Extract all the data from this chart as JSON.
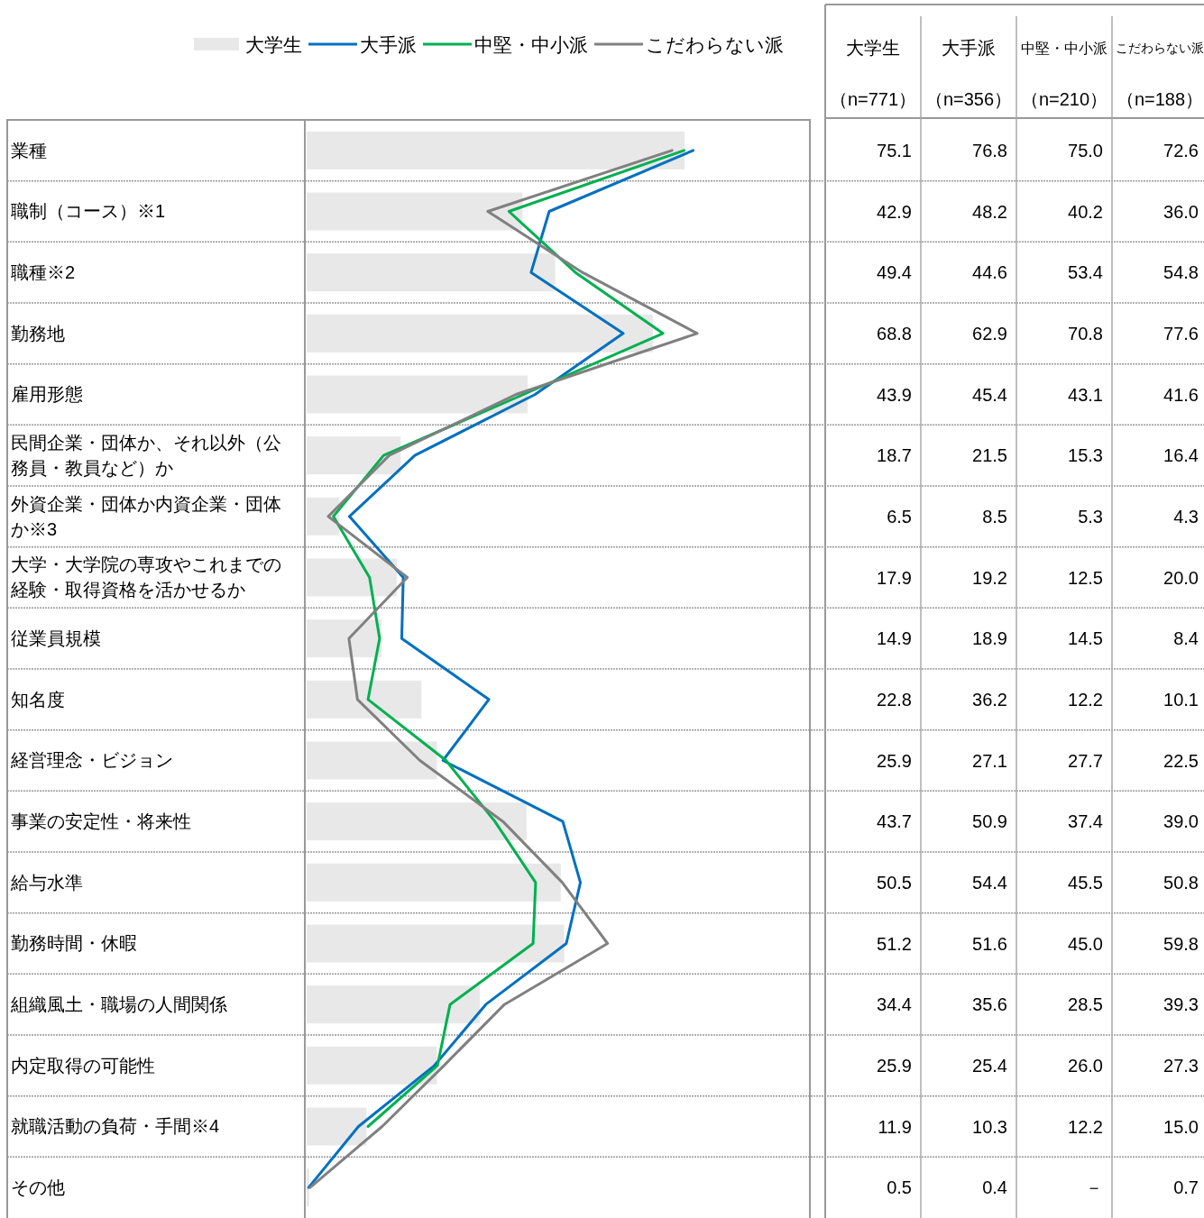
{
  "chart_data": {
    "type": "bar",
    "orientation": "horizontal",
    "xlim": [
      0,
      100
    ],
    "tick_labels": "y",
    "grid": "y",
    "legend": "top left",
    "categories": [
      "業種",
      "職制（コース）※1",
      "職種※2",
      "勤務地",
      "雇用形態",
      "民間企業・団体か、それ以外（公務員・教員など）か",
      "外資企業・団体か内資企業・団体か※3",
      "大学・大学院の専攻やこれまでの経験・取得資格を活かせるか",
      "従業員規模",
      "知名度",
      "経営理念・ビジョン",
      "事業の安定性・将来性",
      "給与水準",
      "勤務時間・休暇",
      "組織風土・職場の人間関係",
      "内定取得の可能性",
      "就職活動の負荷・手間※4",
      "その他"
    ],
    "series": [
      {
        "name": "大学生",
        "color": "#e8e8e8",
        "values": [
          75.1,
          42.9,
          49.4,
          68.8,
          43.9,
          18.7,
          6.5,
          17.9,
          14.9,
          22.8,
          25.9,
          43.7,
          50.5,
          51.2,
          34.4,
          25.9,
          11.9,
          0.5
        ],
        "value_labels": [
          "75.1",
          "42.9",
          "49.4",
          "68.8",
          "43.9",
          "18.7",
          "6.5",
          "17.9",
          "14.9",
          "22.8",
          "25.9",
          "43.7",
          "50.5",
          "51.2",
          "34.4",
          "25.9",
          "11.9",
          "0.5"
        ]
      },
      {
        "name": "大手派",
        "type": "line",
        "color": "#0070c0",
        "values": [
          76.8,
          48.2,
          44.6,
          62.9,
          45.4,
          21.5,
          8.5,
          19.2,
          18.9,
          36.2,
          27.1,
          50.9,
          54.4,
          51.6,
          35.6,
          25.4,
          10.3,
          0.4
        ],
        "value_labels": [
          "76.8",
          "48.2",
          "44.6",
          "62.9",
          "45.4",
          "21.5",
          "8.5",
          "19.2",
          "18.9",
          "36.2",
          "27.1",
          "50.9",
          "54.4",
          "51.6",
          "35.6",
          "25.4",
          "10.3",
          "0.4"
        ]
      },
      {
        "name": "中堅・中小派",
        "type": "line",
        "color": "#00b050",
        "values": [
          75.0,
          40.2,
          53.4,
          70.8,
          43.1,
          15.3,
          5.3,
          12.5,
          14.5,
          12.2,
          27.7,
          37.4,
          45.5,
          45.0,
          28.5,
          26.0,
          12.2,
          null
        ],
        "value_labels": [
          "75.0",
          "40.2",
          "53.4",
          "70.8",
          "43.1",
          "15.3",
          "5.3",
          "12.5",
          "14.5",
          "12.2",
          "27.7",
          "37.4",
          "45.5",
          "45.0",
          "28.5",
          "26.0",
          "12.2",
          "－"
        ]
      },
      {
        "name": "こだわらない派",
        "type": "line",
        "color": "#808080",
        "values": [
          72.6,
          36.0,
          54.8,
          77.6,
          41.6,
          16.4,
          4.3,
          20.0,
          8.4,
          10.1,
          22.5,
          39.0,
          50.8,
          59.8,
          39.3,
          27.3,
          15.0,
          0.7
        ],
        "value_labels": [
          "72.6",
          "36.0",
          "54.8",
          "77.6",
          "41.6",
          "16.4",
          "4.3",
          "20.0",
          "8.4",
          "10.1",
          "22.5",
          "39.0",
          "50.8",
          "59.8",
          "39.3",
          "27.3",
          "15.0",
          "0.7"
        ]
      }
    ],
    "annotations": [
      "（n=771）",
      "（n=356）",
      "（n=210）",
      "（n=188）"
    ]
  }
}
